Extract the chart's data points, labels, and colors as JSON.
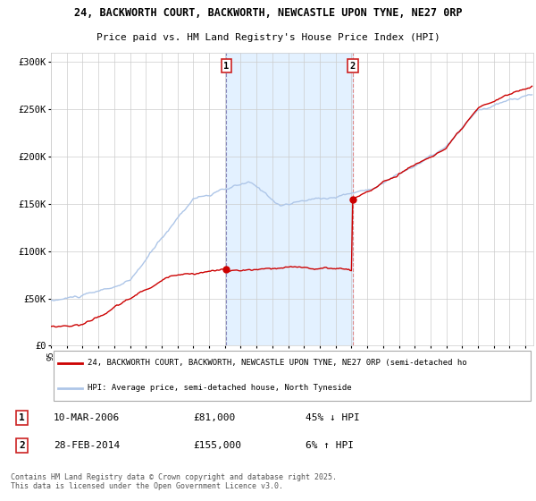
{
  "title_line1": "24, BACKWORTH COURT, BACKWORTH, NEWCASTLE UPON TYNE, NE27 0RP",
  "title_line2": "Price paid vs. HM Land Registry's House Price Index (HPI)",
  "background_color": "#ffffff",
  "plot_bg_color": "#ffffff",
  "grid_color": "#cccccc",
  "hpi_line_color": "#aec6e8",
  "price_line_color": "#cc0000",
  "shade_color": "#ddeeff",
  "dashed_line1_color": "#aaaacc",
  "dashed_line2_color": "#ffaaaa",
  "marker_color": "#cc0000",
  "purchase1": {
    "date_idx": 133,
    "price": 81000,
    "label": "1",
    "date_str": "10-MAR-2006",
    "pct": "45% ↓ HPI"
  },
  "purchase2": {
    "date_idx": 229,
    "price": 155000,
    "label": "2",
    "date_str": "28-FEB-2014",
    "pct": "6% ↑ HPI"
  },
  "ylim": [
    0,
    310000
  ],
  "yticks": [
    0,
    50000,
    100000,
    150000,
    200000,
    250000,
    300000
  ],
  "ytick_labels": [
    "£0",
    "£50K",
    "£100K",
    "£150K",
    "£200K",
    "£250K",
    "£300K"
  ],
  "legend_line1": "24, BACKWORTH COURT, BACKWORTH, NEWCASTLE UPON TYNE, NE27 0RP (semi-detached ho",
  "legend_line2": "HPI: Average price, semi-detached house, North Tyneside",
  "footnote": "Contains HM Land Registry data © Crown copyright and database right 2025.\nThis data is licensed under the Open Government Licence v3.0."
}
